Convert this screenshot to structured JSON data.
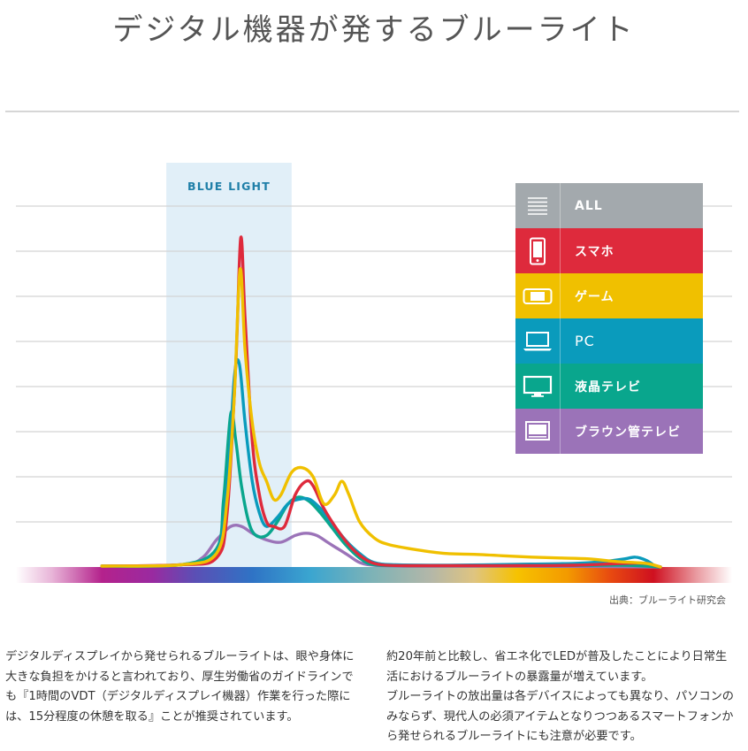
{
  "title": "デジタル機器が発するブルーライト",
  "band_label": "BLUE LIGHT",
  "source": "出典：ブルーライト研究会",
  "legend": [
    {
      "label": "ALL",
      "color": "#a3a9ad",
      "icon": "list-icon"
    },
    {
      "label": "スマホ",
      "color": "#de2a3c",
      "icon": "smartphone-icon"
    },
    {
      "label": "ゲーム",
      "color": "#f0c000",
      "icon": "game-console-icon"
    },
    {
      "label": "PC",
      "color": "#0a9bbc",
      "icon": "laptop-icon"
    },
    {
      "label": "液晶テレビ",
      "color": "#09a68d",
      "icon": "lcd-tv-icon"
    },
    {
      "label": "ブラウン管テレビ",
      "color": "#9b73b8",
      "icon": "crt-tv-icon"
    }
  ],
  "paragraphs": [
    "デジタルディスプレイから発せられるブルーライトは、眼や身体に大きな負担をかけると言われており、厚生労働省のガイドラインでも『1時間のVDT（デジタルディスプレイ機器）作業を行った際には、15分程度の休憩を取る』ことが推奨されています。",
    "約20年前と比較し、省エネ化でLEDが普及したことにより日常生活におけるブルーライトの暴露量が増えています。\nブルーライトの放出量は各デバイスによっても異なり、パソコンのみならず、現代人の必須アイテムとなりつつあるスマートフォンから発せられるブルーライトにも注意が必要です。"
  ],
  "chart_data": {
    "type": "line",
    "title": "デジタル機器が発するブルーライト",
    "xlabel": "",
    "ylabel": "",
    "x_description": "relative wavelength position (0 = violet end, 100 = red end of spectrum bar)",
    "xlim": [
      0,
      100
    ],
    "ylim": [
      0,
      8
    ],
    "grid": true,
    "band": {
      "label": "BLUE LIGHT",
      "x_range": [
        21,
        38.5
      ]
    },
    "series": [
      {
        "name": "スマホ",
        "color": "#de2a3c",
        "points": [
          [
            12,
            0.02
          ],
          [
            23,
            0.05
          ],
          [
            28,
            0.2
          ],
          [
            29.5,
            1.2
          ],
          [
            30.7,
            4.5
          ],
          [
            31.4,
            7.3
          ],
          [
            32,
            5.5
          ],
          [
            33,
            2.8
          ],
          [
            34,
            1.6
          ],
          [
            35,
            1.0
          ],
          [
            36,
            0.9
          ],
          [
            37.5,
            0.9
          ],
          [
            39,
            1.6
          ],
          [
            40.5,
            1.9
          ],
          [
            41.5,
            1.8
          ],
          [
            43,
            1.3
          ],
          [
            45,
            0.8
          ],
          [
            47,
            0.4
          ],
          [
            49,
            0.15
          ],
          [
            51,
            0.05
          ],
          [
            55,
            0.03
          ],
          [
            62,
            0.03
          ],
          [
            70,
            0.03
          ],
          [
            78,
            0.04
          ],
          [
            85,
            0.08
          ],
          [
            88,
            0.08
          ],
          [
            90,
            0.0
          ]
        ]
      },
      {
        "name": "ゲーム",
        "color": "#f0c000",
        "points": [
          [
            12,
            0.02
          ],
          [
            23,
            0.05
          ],
          [
            28,
            0.3
          ],
          [
            29.5,
            1.5
          ],
          [
            30.5,
            3.8
          ],
          [
            31.3,
            6.6
          ],
          [
            32,
            4.8
          ],
          [
            33,
            3.2
          ],
          [
            34,
            2.3
          ],
          [
            35,
            1.9
          ],
          [
            36,
            1.5
          ],
          [
            37,
            1.6
          ],
          [
            38.5,
            2.1
          ],
          [
            40,
            2.2
          ],
          [
            41.5,
            2.0
          ],
          [
            43,
            1.4
          ],
          [
            44.5,
            1.6
          ],
          [
            45.5,
            1.9
          ],
          [
            46.5,
            1.6
          ],
          [
            48,
            1.0
          ],
          [
            50,
            0.65
          ],
          [
            52,
            0.5
          ],
          [
            56,
            0.38
          ],
          [
            60,
            0.3
          ],
          [
            64,
            0.28
          ],
          [
            68,
            0.25
          ],
          [
            72,
            0.22
          ],
          [
            76,
            0.2
          ],
          [
            80,
            0.18
          ],
          [
            84,
            0.12
          ],
          [
            88,
            0.08
          ],
          [
            90,
            0.0
          ]
        ]
      },
      {
        "name": "PC",
        "color": "#0a9bbc",
        "points": [
          [
            12,
            0.02
          ],
          [
            23,
            0.05
          ],
          [
            28,
            0.3
          ],
          [
            29.5,
            1.8
          ],
          [
            30.5,
            4.2
          ],
          [
            31.2,
            4.5
          ],
          [
            32,
            3.2
          ],
          [
            33,
            1.9
          ],
          [
            34,
            1.2
          ],
          [
            35,
            0.9
          ],
          [
            36.5,
            1.1
          ],
          [
            38,
            1.4
          ],
          [
            39.5,
            1.5
          ],
          [
            41,
            1.5
          ],
          [
            42.5,
            1.3
          ],
          [
            44,
            1.0
          ],
          [
            46,
            0.6
          ],
          [
            48,
            0.3
          ],
          [
            50,
            0.1
          ],
          [
            53,
            0.05
          ],
          [
            60,
            0.04
          ],
          [
            70,
            0.06
          ],
          [
            78,
            0.08
          ],
          [
            82,
            0.12
          ],
          [
            85,
            0.18
          ],
          [
            86.5,
            0.22
          ],
          [
            88,
            0.15
          ],
          [
            89,
            0.05
          ]
        ]
      },
      {
        "name": "液晶テレビ",
        "color": "#09a68d",
        "points": [
          [
            12,
            0.02
          ],
          [
            23,
            0.05
          ],
          [
            28,
            0.4
          ],
          [
            29,
            1.5
          ],
          [
            30,
            3.4
          ],
          [
            30.7,
            2.8
          ],
          [
            31.5,
            1.8
          ],
          [
            32.5,
            1.0
          ],
          [
            33.5,
            0.7
          ],
          [
            35,
            0.7
          ],
          [
            36.5,
            1.0
          ],
          [
            38,
            1.4
          ],
          [
            39.5,
            1.55
          ],
          [
            41,
            1.45
          ],
          [
            42.5,
            1.2
          ],
          [
            44,
            0.9
          ],
          [
            46,
            0.5
          ],
          [
            48,
            0.2
          ],
          [
            50,
            0.05
          ],
          [
            55,
            0.03
          ],
          [
            65,
            0.03
          ],
          [
            75,
            0.03
          ],
          [
            85,
            0.04
          ],
          [
            90,
            0.0
          ]
        ]
      },
      {
        "name": "ブラウン管テレビ",
        "color": "#9b73b8",
        "points": [
          [
            12,
            0.02
          ],
          [
            23,
            0.05
          ],
          [
            26,
            0.2
          ],
          [
            28,
            0.6
          ],
          [
            30,
            0.9
          ],
          [
            31.5,
            0.9
          ],
          [
            33,
            0.75
          ],
          [
            35,
            0.6
          ],
          [
            37,
            0.55
          ],
          [
            39,
            0.7
          ],
          [
            40.5,
            0.75
          ],
          [
            42,
            0.7
          ],
          [
            43.5,
            0.55
          ],
          [
            45,
            0.4
          ],
          [
            46.5,
            0.25
          ],
          [
            48,
            0.1
          ],
          [
            50,
            0.04
          ],
          [
            55,
            0.02
          ],
          [
            70,
            0.02
          ],
          [
            90,
            0.0
          ]
        ]
      }
    ]
  }
}
